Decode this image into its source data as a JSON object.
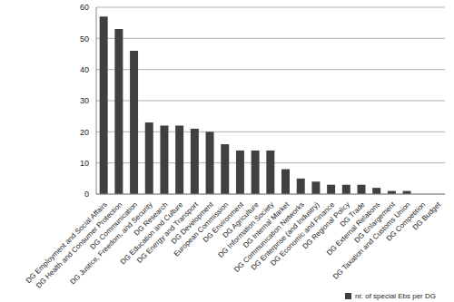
{
  "chart_data": {
    "type": "bar",
    "categories": [
      "DG Employment and Social Affairs",
      "DG Health and Consumer Protection",
      "DG Communication",
      "DG Justice, Freedom, and Security",
      "DG Research",
      "DG Education and Culture",
      "DG Energy and Transport",
      "DG Development",
      "European Commission",
      "DG Environment",
      "DG Agriculture",
      "DG Information Society",
      "DG Internal Market",
      "DG Communication Networks",
      "DG Enterprise (and Industry)",
      "DG Economic and Finance",
      "DG Regional Policy",
      "DG Trade",
      "DG External Relations",
      "DG Enlargement",
      "DG Taxation and Customs Union",
      "DG Competition",
      "DG Budget"
    ],
    "series": [
      {
        "name": "nr. of special Ebs per DG",
        "color": "#404040",
        "values": [
          57,
          53,
          46,
          23,
          22,
          22,
          21,
          20,
          16,
          14,
          14,
          14,
          8,
          5,
          4,
          3,
          3,
          3,
          2,
          1,
          1,
          0,
          0
        ]
      }
    ],
    "ylim": [
      0,
      60
    ],
    "yticks": [
      0,
      10,
      20,
      30,
      40,
      50,
      60
    ],
    "grid": true,
    "legend": "bottom-right"
  }
}
